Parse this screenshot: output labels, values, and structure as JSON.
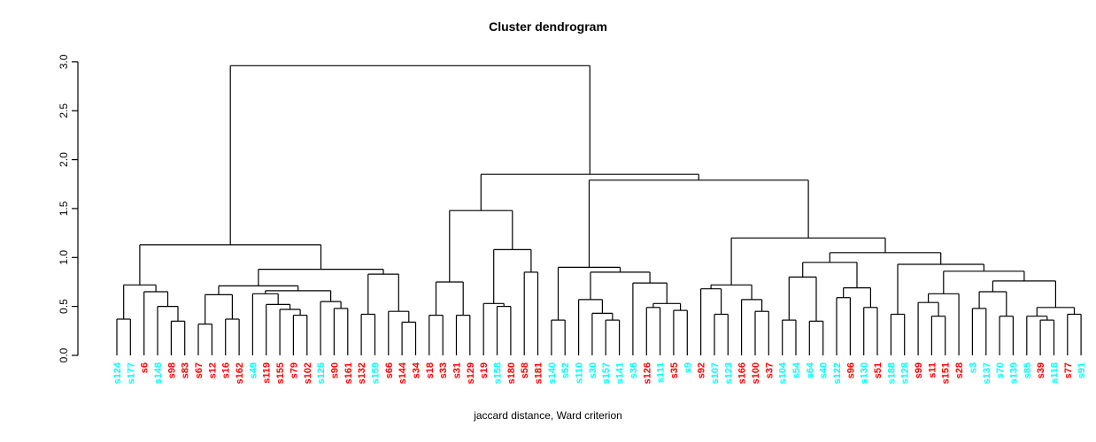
{
  "title": "Cluster dendrogram",
  "caption": "jaccard distance, Ward criterion",
  "colors": {
    "red": "#FF0000",
    "cyan": "#00FFFF",
    "line": "#000000",
    "background": "#FFFFFF"
  },
  "y_axis": {
    "ticks": [
      "0.0",
      "0.5",
      "1.0",
      "1.5",
      "2.0",
      "2.5",
      "3.0"
    ],
    "min": 0,
    "max": 3
  },
  "chart_data": {
    "type": "dendrogram",
    "title": "Cluster dendrogram",
    "xlabel": "jaccard distance, Ward criterion",
    "ylabel": "",
    "ylim": [
      0,
      3
    ],
    "root_height": 2.96,
    "legend": "none",
    "grid": false,
    "leaves": [
      {
        "label": "s124",
        "color": "cyan"
      },
      {
        "label": "s177",
        "color": "cyan"
      },
      {
        "label": "s6",
        "color": "red"
      },
      {
        "label": "s148",
        "color": "cyan"
      },
      {
        "label": "s98",
        "color": "red"
      },
      {
        "label": "s83",
        "color": "red"
      },
      {
        "label": "s67",
        "color": "red"
      },
      {
        "label": "s12",
        "color": "red"
      },
      {
        "label": "s16",
        "color": "red"
      },
      {
        "label": "s162",
        "color": "red"
      },
      {
        "label": "s49",
        "color": "cyan"
      },
      {
        "label": "s119",
        "color": "red"
      },
      {
        "label": "s155",
        "color": "red"
      },
      {
        "label": "s79",
        "color": "red"
      },
      {
        "label": "s102",
        "color": "red"
      },
      {
        "label": "s125",
        "color": "cyan"
      },
      {
        "label": "s90",
        "color": "red"
      },
      {
        "label": "s161",
        "color": "red"
      },
      {
        "label": "s132",
        "color": "red"
      },
      {
        "label": "s159",
        "color": "cyan"
      },
      {
        "label": "s66",
        "color": "red"
      },
      {
        "label": "s144",
        "color": "red"
      },
      {
        "label": "s34",
        "color": "red"
      },
      {
        "label": "s18",
        "color": "red"
      },
      {
        "label": "s33",
        "color": "red"
      },
      {
        "label": "s31",
        "color": "red"
      },
      {
        "label": "s129",
        "color": "red"
      },
      {
        "label": "s19",
        "color": "red"
      },
      {
        "label": "s158",
        "color": "cyan"
      },
      {
        "label": "s180",
        "color": "red"
      },
      {
        "label": "s58",
        "color": "red"
      },
      {
        "label": "s181",
        "color": "red"
      },
      {
        "label": "s140",
        "color": "cyan"
      },
      {
        "label": "s52",
        "color": "cyan"
      },
      {
        "label": "s110",
        "color": "cyan"
      },
      {
        "label": "s30",
        "color": "cyan"
      },
      {
        "label": "s157",
        "color": "cyan"
      },
      {
        "label": "s141",
        "color": "cyan"
      },
      {
        "label": "s36",
        "color": "cyan"
      },
      {
        "label": "s126",
        "color": "red"
      },
      {
        "label": "s111",
        "color": "cyan"
      },
      {
        "label": "s35",
        "color": "red"
      },
      {
        "label": "s9",
        "color": "cyan"
      },
      {
        "label": "s92",
        "color": "red"
      },
      {
        "label": "s107",
        "color": "cyan"
      },
      {
        "label": "s123",
        "color": "cyan"
      },
      {
        "label": "s166",
        "color": "red"
      },
      {
        "label": "s100",
        "color": "red"
      },
      {
        "label": "s37",
        "color": "red"
      },
      {
        "label": "s104",
        "color": "cyan"
      },
      {
        "label": "s54",
        "color": "cyan"
      },
      {
        "label": "s64",
        "color": "cyan"
      },
      {
        "label": "s40",
        "color": "cyan"
      },
      {
        "label": "s122",
        "color": "cyan"
      },
      {
        "label": "s96",
        "color": "red"
      },
      {
        "label": "s130",
        "color": "cyan"
      },
      {
        "label": "s51",
        "color": "red"
      },
      {
        "label": "s188",
        "color": "cyan"
      },
      {
        "label": "s128",
        "color": "cyan"
      },
      {
        "label": "s99",
        "color": "red"
      },
      {
        "label": "s11",
        "color": "red"
      },
      {
        "label": "s151",
        "color": "red"
      },
      {
        "label": "s28",
        "color": "red"
      },
      {
        "label": "s3",
        "color": "cyan"
      },
      {
        "label": "s137",
        "color": "cyan"
      },
      {
        "label": "s70",
        "color": "cyan"
      },
      {
        "label": "s139",
        "color": "cyan"
      },
      {
        "label": "s85",
        "color": "cyan"
      },
      {
        "label": "s39",
        "color": "red"
      },
      {
        "label": "s118",
        "color": "cyan"
      },
      {
        "label": "s77",
        "color": "red"
      },
      {
        "label": "s91",
        "color": "cyan"
      }
    ],
    "tree": {
      "h": 2.96,
      "c": [
        {
          "h": 1.13,
          "c": [
            {
              "h": 0.72,
              "c": [
                {
                  "h": 0.37,
                  "c": [
                    "s124",
                    "s177"
                  ]
                },
                {
                  "h": 0.65,
                  "c": [
                    "s6",
                    {
                      "h": 0.5,
                      "c": [
                        "s148",
                        {
                          "h": 0.35,
                          "c": [
                            "s98",
                            "s83"
                          ]
                        }
                      ]
                    }
                  ]
                }
              ]
            },
            {
              "h": 0.88,
              "c": [
                {
                  "h": 0.71,
                  "c": [
                    {
                      "h": 0.62,
                      "c": [
                        {
                          "h": 0.32,
                          "c": [
                            "s67",
                            "s12"
                          ]
                        },
                        {
                          "h": 0.37,
                          "c": [
                            "s16",
                            "s162"
                          ]
                        }
                      ]
                    },
                    {
                      "h": 0.66,
                      "c": [
                        {
                          "h": 0.63,
                          "c": [
                            "s49",
                            {
                              "h": 0.52,
                              "c": [
                                "s119",
                                {
                                  "h": 0.47,
                                  "c": [
                                    "s155",
                                    {
                                      "h": 0.41,
                                      "c": [
                                        "s79",
                                        "s102"
                                      ]
                                    }
                                  ]
                                }
                              ]
                            }
                          ]
                        },
                        {
                          "h": 0.55,
                          "c": [
                            "s125",
                            {
                              "h": 0.48,
                              "c": [
                                "s90",
                                "s161"
                              ]
                            }
                          ]
                        }
                      ]
                    }
                  ]
                },
                {
                  "h": 0.83,
                  "c": [
                    {
                      "h": 0.42,
                      "c": [
                        "s132",
                        "s159"
                      ]
                    },
                    {
                      "h": 0.45,
                      "c": [
                        "s66",
                        {
                          "h": 0.34,
                          "c": [
                            "s144",
                            "s34"
                          ]
                        }
                      ]
                    }
                  ]
                }
              ]
            }
          ]
        },
        {
          "h": 1.85,
          "c": [
            {
              "h": 1.48,
              "c": [
                {
                  "h": 0.75,
                  "c": [
                    {
                      "h": 0.41,
                      "c": [
                        "s18",
                        "s33"
                      ]
                    },
                    {
                      "h": 0.41,
                      "c": [
                        "s31",
                        "s129"
                      ]
                    }
                  ]
                },
                {
                  "h": 1.08,
                  "c": [
                    {
                      "h": 0.53,
                      "c": [
                        "s19",
                        {
                          "h": 0.5,
                          "c": [
                            "s158",
                            "s180"
                          ]
                        }
                      ]
                    },
                    {
                      "h": 0.85,
                      "c": [
                        "s58",
                        "s181"
                      ]
                    }
                  ]
                }
              ]
            },
            {
              "h": 1.79,
              "c": [
                {
                  "h": 0.9,
                  "c": [
                    {
                      "h": 0.36,
                      "c": [
                        "s140",
                        "s52"
                      ]
                    },
                    {
                      "h": 0.85,
                      "c": [
                        {
                          "h": 0.57,
                          "c": [
                            "s110",
                            {
                              "h": 0.43,
                              "c": [
                                "s30",
                                {
                                  "h": 0.36,
                                  "c": [
                                    "s157",
                                    "s141"
                                  ]
                                }
                              ]
                            }
                          ]
                        },
                        {
                          "h": 0.74,
                          "c": [
                            "s36",
                            {
                              "h": 0.53,
                              "c": [
                                {
                                  "h": 0.49,
                                  "c": [
                                    "s126",
                                    "s111"
                                  ]
                                },
                                {
                                  "h": 0.46,
                                  "c": [
                                    "s35",
                                    "s9"
                                  ]
                                }
                              ]
                            }
                          ]
                        }
                      ]
                    }
                  ]
                },
                {
                  "h": 1.2,
                  "c": [
                    {
                      "h": 0.72,
                      "c": [
                        {
                          "h": 0.68,
                          "c": [
                            "s92",
                            {
                              "h": 0.42,
                              "c": [
                                "s107",
                                "s123"
                              ]
                            }
                          ]
                        },
                        {
                          "h": 0.57,
                          "c": [
                            "s166",
                            {
                              "h": 0.45,
                              "c": [
                                "s100",
                                "s37"
                              ]
                            }
                          ]
                        }
                      ]
                    },
                    {
                      "h": 1.05,
                      "c": [
                        {
                          "h": 0.95,
                          "c": [
                            {
                              "h": 0.8,
                              "c": [
                                {
                                  "h": 0.36,
                                  "c": [
                                    "s104",
                                    "s54"
                                  ]
                                },
                                {
                                  "h": 0.35,
                                  "c": [
                                    "s64",
                                    "s40"
                                  ]
                                }
                              ]
                            },
                            {
                              "h": 0.69,
                              "c": [
                                {
                                  "h": 0.59,
                                  "c": [
                                    "s122",
                                    "s96"
                                  ]
                                },
                                {
                                  "h": 0.49,
                                  "c": [
                                    "s130",
                                    "s51"
                                  ]
                                }
                              ]
                            }
                          ]
                        },
                        {
                          "h": 0.93,
                          "c": [
                            {
                              "h": 0.42,
                              "c": [
                                "s188",
                                "s128"
                              ]
                            },
                            {
                              "h": 0.86,
                              "c": [
                                {
                                  "h": 0.63,
                                  "c": [
                                    {
                                      "h": 0.54,
                                      "c": [
                                        "s99",
                                        {
                                          "h": 0.4,
                                          "c": [
                                            "s11",
                                            "s151"
                                          ]
                                        }
                                      ]
                                    },
                                    "s28"
                                  ]
                                },
                                {
                                  "h": 0.76,
                                  "c": [
                                    {
                                      "h": 0.65,
                                      "c": [
                                        {
                                          "h": 0.48,
                                          "c": [
                                            "s3",
                                            "s137"
                                          ]
                                        },
                                        {
                                          "h": 0.4,
                                          "c": [
                                            "s70",
                                            "s139"
                                          ]
                                        }
                                      ]
                                    },
                                    {
                                      "h": 0.49,
                                      "c": [
                                        {
                                          "h": 0.4,
                                          "c": [
                                            "s85",
                                            {
                                              "h": 0.36,
                                              "c": [
                                                "s39",
                                                "s118"
                                              ]
                                            }
                                          ]
                                        },
                                        {
                                          "h": 0.42,
                                          "c": [
                                            "s77",
                                            "s91"
                                          ]
                                        }
                                      ]
                                    }
                                  ]
                                }
                              ]
                            }
                          ]
                        }
                      ]
                    }
                  ]
                }
              ]
            }
          ]
        }
      ]
    }
  }
}
